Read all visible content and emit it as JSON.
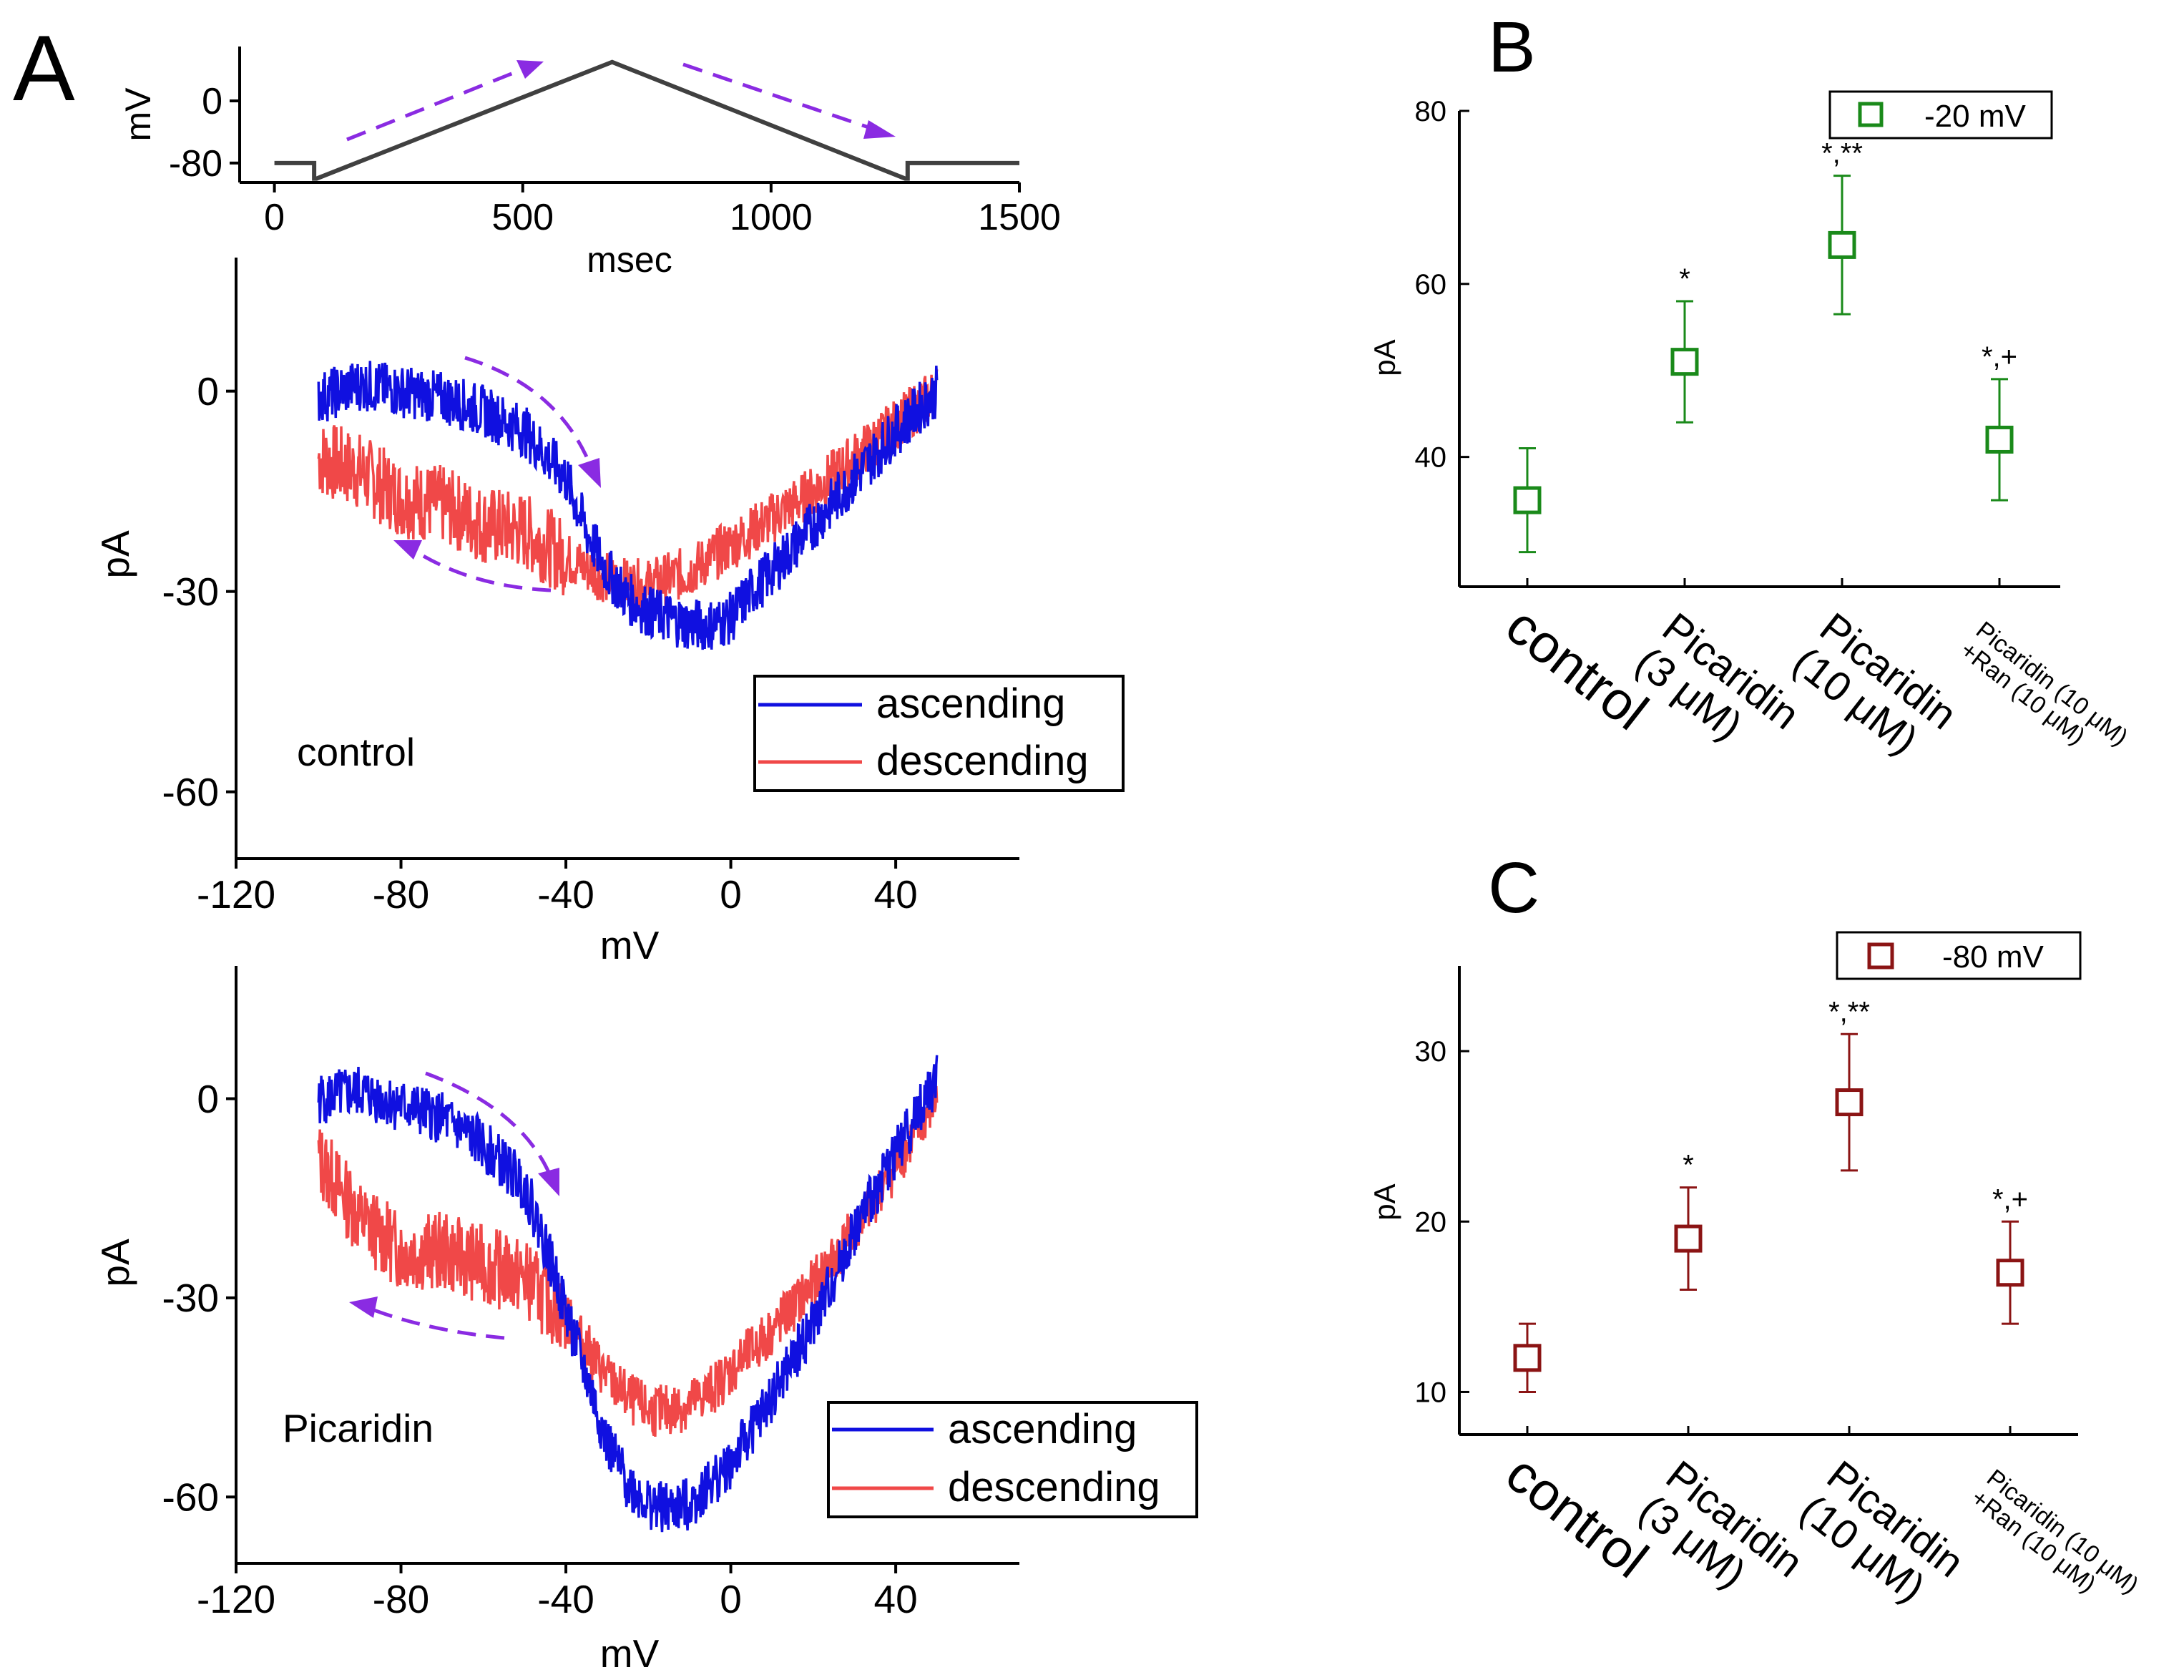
{
  "panel_labels": {
    "a": "A",
    "b": "B",
    "c": "C"
  },
  "chart_data": [
    {
      "id": "protocol",
      "type": "line",
      "xlabel": "msec",
      "ylabel": "mV",
      "xlim": [
        -70,
        1500
      ],
      "ylim": [
        -105,
        70
      ],
      "xticks": [
        0,
        500,
        1000,
        1500
      ],
      "yticks": [
        0,
        -80
      ],
      "x_tick_labels": [
        "0",
        "500",
        "1000",
        "1500"
      ],
      "y_tick_labels": [
        "0",
        "-80"
      ],
      "series": [
        {
          "name": "voltage ramp",
          "color": "#404040",
          "x": [
            0,
            80,
            80,
            85,
            680,
            1270,
            1275,
            1275,
            1500
          ],
          "y": [
            -80,
            -80,
            -100,
            -100,
            50,
            -100,
            -100,
            -80,
            -80
          ]
        }
      ],
      "annotations": [
        "ascending ramp arrow",
        "descending ramp arrow"
      ]
    },
    {
      "id": "control",
      "type": "line",
      "xlabel": "mV",
      "ylabel": "pA",
      "xlim": [
        -120,
        70
      ],
      "ylim": [
        -70,
        20
      ],
      "xticks": [
        -120,
        -80,
        -40,
        0,
        40
      ],
      "yticks": [
        0,
        -30,
        -60
      ],
      "x_tick_labels": [
        "-120",
        "-80",
        "-40",
        "0",
        "40"
      ],
      "y_tick_labels": [
        "0",
        "-30",
        "-60"
      ],
      "annotation": "control",
      "series": [
        {
          "name": "ascending",
          "color": "#1010e0",
          "x": [
            -100,
            -90,
            -80,
            -70,
            -60,
            -50,
            -40,
            -35,
            -30,
            -25,
            -20,
            -15,
            -10,
            -5,
            0,
            5,
            10,
            20,
            30,
            40,
            50
          ],
          "y": [
            -1,
            1,
            0,
            -1,
            -3,
            -6,
            -13,
            -21,
            -27,
            -31,
            -33,
            -34,
            -35,
            -35,
            -34,
            -30,
            -27,
            -20,
            -13,
            -6,
            0
          ]
        },
        {
          "name": "descending",
          "color": "#f04848",
          "x": [
            -100,
            -90,
            -80,
            -70,
            -60,
            -50,
            -40,
            -30,
            -25,
            -20,
            -15,
            -10,
            -5,
            0,
            10,
            20,
            30,
            40,
            50
          ],
          "y": [
            -10,
            -12,
            -16,
            -17,
            -20,
            -21,
            -25,
            -28,
            -29,
            -29,
            -28,
            -27,
            -25,
            -23,
            -19,
            -15,
            -10,
            -5,
            0
          ]
        }
      ]
    },
    {
      "id": "picaridin",
      "type": "line",
      "xlabel": "mV",
      "ylabel": "pA",
      "xlim": [
        -120,
        70
      ],
      "ylim": [
        -70,
        20
      ],
      "xticks": [
        -120,
        -80,
        -40,
        0,
        40
      ],
      "yticks": [
        0,
        -30,
        -60
      ],
      "x_tick_labels": [
        "-120",
        "-80",
        "-40",
        "0",
        "40"
      ],
      "y_tick_labels": [
        "0",
        "-30",
        "-60"
      ],
      "annotation": "Picaridin",
      "series": [
        {
          "name": "ascending",
          "color": "#1010e0",
          "x": [
            -100,
            -90,
            -80,
            -70,
            -60,
            -50,
            -45,
            -40,
            -35,
            -30,
            -25,
            -20,
            -15,
            -10,
            -5,
            0,
            10,
            20,
            30,
            40,
            50
          ],
          "y": [
            0,
            1,
            -1,
            -3,
            -7,
            -13,
            -22,
            -32,
            -42,
            -52,
            -58,
            -61,
            -62,
            -61,
            -58,
            -55,
            -45,
            -34,
            -20,
            -8,
            3
          ]
        },
        {
          "name": "descending",
          "color": "#f04848",
          "x": [
            -100,
            -90,
            -80,
            -70,
            -60,
            -50,
            -40,
            -30,
            -25,
            -20,
            -15,
            -10,
            -5,
            0,
            10,
            20,
            30,
            40,
            50
          ],
          "y": [
            -9,
            -18,
            -23,
            -23,
            -25,
            -27,
            -33,
            -42,
            -45,
            -47,
            -47,
            -46,
            -44,
            -41,
            -35,
            -28,
            -20,
            -10,
            0
          ]
        }
      ]
    },
    {
      "id": "B",
      "type": "scatter",
      "ylabel": "pA",
      "ylim": [
        25,
        80
      ],
      "yticks": [
        40,
        60,
        80
      ],
      "y_tick_labels": [
        "40",
        "60",
        "80"
      ],
      "categories": [
        "control",
        "Picaridin (3 μM)",
        "Picaridin (10 μM)",
        "Picaridin (10 μM) +Ran (10 μM)"
      ],
      "category_lines": [
        [
          "control"
        ],
        [
          "Picaridin",
          "(3 μM)"
        ],
        [
          "Picaridin",
          "(10 μM)"
        ],
        [
          "Picaridin (10 μM)",
          "+Ran (10 μM)"
        ]
      ],
      "legend": "-20 mV",
      "color": "#1a8a1a",
      "values": [
        35,
        51,
        64.5,
        42
      ],
      "errors": [
        6,
        7,
        8,
        7
      ],
      "significance": [
        "",
        "*",
        "*,**",
        "*,+"
      ]
    },
    {
      "id": "C",
      "type": "scatter",
      "ylabel": "pA",
      "ylim": [
        7.5,
        35
      ],
      "yticks": [
        10,
        20,
        30
      ],
      "y_tick_labels": [
        "10",
        "20",
        "30"
      ],
      "categories": [
        "control",
        "Picaridin (3 μM)",
        "Picaridin (10 μM)",
        "Picaridin (10 μM) +Ran (10 μM)"
      ],
      "category_lines": [
        [
          "control"
        ],
        [
          "Picaridin",
          "(3 μM)"
        ],
        [
          "Picaridin",
          "(10 μM)"
        ],
        [
          "Picaridin (10 μM)",
          "+Ran (10 μM)"
        ]
      ],
      "legend": "-80 mV",
      "color": "#8b1414",
      "values": [
        12,
        19,
        27,
        17
      ],
      "errors": [
        2,
        3,
        4,
        3
      ],
      "significance": [
        "",
        "*",
        "*,**",
        "*,+"
      ]
    }
  ]
}
